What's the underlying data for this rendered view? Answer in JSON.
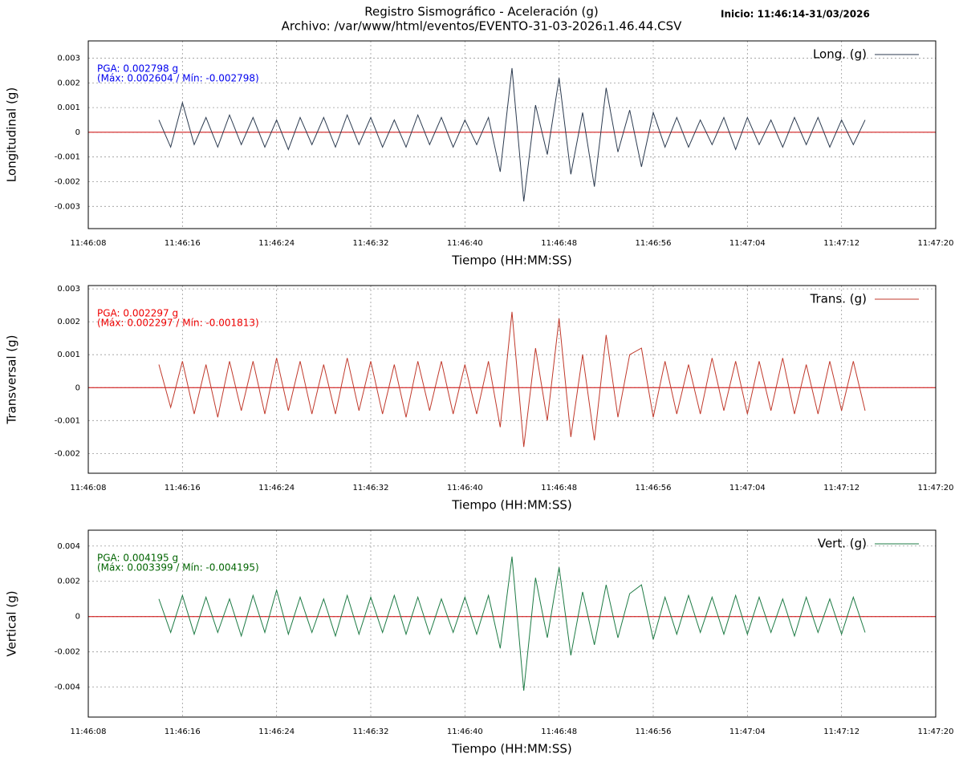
{
  "header": {
    "title": "Registro Sismográfico - Aceleración (g)",
    "subtitle": "Archivo: /var/www/html/eventos/EVENTO-31-03-2026₁1.46.44.CSV",
    "start": "Inicio: 11:46:14-31/03/2026"
  },
  "chart_data": [
    {
      "type": "line",
      "xlabel": "Tiempo (HH:MM:SS)",
      "ylabel": "Longitudinal (g)",
      "grid": true,
      "legend": "top-right",
      "zero_line_color": "#cc0000",
      "annotations": [
        "PGA: 0.002798 g",
        "(Máx: 0.002604 / Mín: -0.002798)"
      ],
      "annotation_color": "#0000ee",
      "xlim": [
        42368,
        42440
      ],
      "xticks": [
        {
          "value": 42368,
          "label": "11:46:08"
        },
        {
          "value": 42376,
          "label": "11:46:16"
        },
        {
          "value": 42384,
          "label": "11:46:24"
        },
        {
          "value": 42392,
          "label": "11:46:32"
        },
        {
          "value": 42400,
          "label": "11:46:40"
        },
        {
          "value": 42408,
          "label": "11:46:48"
        },
        {
          "value": 42416,
          "label": "11:46:56"
        },
        {
          "value": 42424,
          "label": "11:47:04"
        },
        {
          "value": 42432,
          "label": "11:47:12"
        },
        {
          "value": 42440,
          "label": "11:47:20"
        }
      ],
      "ylim": [
        -0.0039,
        0.0037
      ],
      "yticks": [
        -0.003,
        -0.002,
        -0.001,
        0,
        0.001,
        0.002,
        0.003
      ],
      "x": [
        42374,
        42375,
        42376,
        42377,
        42378,
        42379,
        42380,
        42381,
        42382,
        42383,
        42384,
        42385,
        42386,
        42387,
        42388,
        42389,
        42390,
        42391,
        42392,
        42393,
        42394,
        42395,
        42396,
        42397,
        42398,
        42399,
        42400,
        42401,
        42402,
        42403,
        42404,
        42405,
        42406,
        42407,
        42408,
        42409,
        42410,
        42411,
        42412,
        42413,
        42414,
        42415,
        42416,
        42417,
        42418,
        42419,
        42420,
        42421,
        42422,
        42423,
        42424,
        42425,
        42426,
        42427,
        42428,
        42429,
        42430,
        42431,
        42432,
        42433,
        42434
      ],
      "series": [
        {
          "name": "Long. (g)",
          "color": "#2b3a4f",
          "values": [
            0.0005,
            -0.0006,
            0.0012,
            -0.0005,
            0.0006,
            -0.0006,
            0.0007,
            -0.0005,
            0.0006,
            -0.0006,
            0.0005,
            -0.0007,
            0.0006,
            -0.0005,
            0.0006,
            -0.0006,
            0.0007,
            -0.0005,
            0.0006,
            -0.0006,
            0.0005,
            -0.0006,
            0.0007,
            -0.0005,
            0.0006,
            -0.0006,
            0.0005,
            -0.0005,
            0.0006,
            -0.0016,
            0.0026,
            -0.0028,
            0.0011,
            -0.0009,
            0.0022,
            -0.0017,
            0.0008,
            -0.0022,
            0.0018,
            -0.0008,
            0.0009,
            -0.0014,
            0.0008,
            -0.0006,
            0.0006,
            -0.0006,
            0.0005,
            -0.0005,
            0.0006,
            -0.0007,
            0.0006,
            -0.0005,
            0.0005,
            -0.0006,
            0.0006,
            -0.0005,
            0.0006,
            -0.0006,
            0.0005,
            -0.0005,
            0.0005
          ]
        }
      ]
    },
    {
      "type": "line",
      "xlabel": "Tiempo (HH:MM:SS)",
      "ylabel": "Transversal (g)",
      "grid": true,
      "legend": "top-right",
      "zero_line_color": "#cc0000",
      "annotations": [
        "PGA: 0.002297 g",
        "(Máx: 0.002297 / Mín: -0.001813)"
      ],
      "annotation_color": "#ee0000",
      "xlim": [
        42368,
        42440
      ],
      "xticks": [
        {
          "value": 42368,
          "label": "11:46:08"
        },
        {
          "value": 42376,
          "label": "11:46:16"
        },
        {
          "value": 42384,
          "label": "11:46:24"
        },
        {
          "value": 42392,
          "label": "11:46:32"
        },
        {
          "value": 42400,
          "label": "11:46:40"
        },
        {
          "value": 42408,
          "label": "11:46:48"
        },
        {
          "value": 42416,
          "label": "11:46:56"
        },
        {
          "value": 42424,
          "label": "11:47:04"
        },
        {
          "value": 42432,
          "label": "11:47:12"
        },
        {
          "value": 42440,
          "label": "11:47:20"
        }
      ],
      "ylim": [
        -0.0026,
        0.0031
      ],
      "yticks": [
        -0.002,
        -0.001,
        0,
        0.001,
        0.002,
        0.003
      ],
      "x": [
        42374,
        42375,
        42376,
        42377,
        42378,
        42379,
        42380,
        42381,
        42382,
        42383,
        42384,
        42385,
        42386,
        42387,
        42388,
        42389,
        42390,
        42391,
        42392,
        42393,
        42394,
        42395,
        42396,
        42397,
        42398,
        42399,
        42400,
        42401,
        42402,
        42403,
        42404,
        42405,
        42406,
        42407,
        42408,
        42409,
        42410,
        42411,
        42412,
        42413,
        42414,
        42415,
        42416,
        42417,
        42418,
        42419,
        42420,
        42421,
        42422,
        42423,
        42424,
        42425,
        42426,
        42427,
        42428,
        42429,
        42430,
        42431,
        42432,
        42433,
        42434
      ],
      "series": [
        {
          "name": "Trans. (g)",
          "color": "#c0392b",
          "values": [
            0.0007,
            -0.0006,
            0.0008,
            -0.0008,
            0.0007,
            -0.0009,
            0.0008,
            -0.0007,
            0.0008,
            -0.0008,
            0.0009,
            -0.0007,
            0.0008,
            -0.0008,
            0.0007,
            -0.0008,
            0.0009,
            -0.0007,
            0.0008,
            -0.0008,
            0.0007,
            -0.0009,
            0.0008,
            -0.0007,
            0.0008,
            -0.0008,
            0.0007,
            -0.0008,
            0.0008,
            -0.0012,
            0.0023,
            -0.0018,
            0.0012,
            -0.001,
            0.0021,
            -0.0015,
            0.001,
            -0.0016,
            0.0016,
            -0.0009,
            0.001,
            0.0012,
            -0.0009,
            0.0008,
            -0.0008,
            0.0007,
            -0.0008,
            0.0009,
            -0.0007,
            0.0008,
            -0.0008,
            0.0008,
            -0.0007,
            0.0009,
            -0.0008,
            0.0007,
            -0.0008,
            0.0008,
            -0.0007,
            0.0008,
            -0.0007
          ]
        }
      ]
    },
    {
      "type": "line",
      "xlabel": "Tiempo (HH:MM:SS)",
      "ylabel": "Vertical (g)",
      "grid": true,
      "legend": "top-right",
      "zero_line_color": "#cc0000",
      "annotations": [
        "PGA: 0.004195 g",
        "(Máx: 0.003399 / Mín: -0.004195)"
      ],
      "annotation_color": "#006400",
      "xlim": [
        42368,
        42440
      ],
      "xticks": [
        {
          "value": 42368,
          "label": "11:46:08"
        },
        {
          "value": 42376,
          "label": "11:46:16"
        },
        {
          "value": 42384,
          "label": "11:46:24"
        },
        {
          "value": 42392,
          "label": "11:46:32"
        },
        {
          "value": 42400,
          "label": "11:46:40"
        },
        {
          "value": 42408,
          "label": "11:46:48"
        },
        {
          "value": 42416,
          "label": "11:46:56"
        },
        {
          "value": 42424,
          "label": "11:47:04"
        },
        {
          "value": 42432,
          "label": "11:47:12"
        },
        {
          "value": 42440,
          "label": "11:47:20"
        }
      ],
      "ylim": [
        -0.0057,
        0.0049
      ],
      "yticks": [
        -0.004,
        -0.002,
        0,
        0.002,
        0.004
      ],
      "x": [
        42374,
        42375,
        42376,
        42377,
        42378,
        42379,
        42380,
        42381,
        42382,
        42383,
        42384,
        42385,
        42386,
        42387,
        42388,
        42389,
        42390,
        42391,
        42392,
        42393,
        42394,
        42395,
        42396,
        42397,
        42398,
        42399,
        42400,
        42401,
        42402,
        42403,
        42404,
        42405,
        42406,
        42407,
        42408,
        42409,
        42410,
        42411,
        42412,
        42413,
        42414,
        42415,
        42416,
        42417,
        42418,
        42419,
        42420,
        42421,
        42422,
        42423,
        42424,
        42425,
        42426,
        42427,
        42428,
        42429,
        42430,
        42431,
        42432,
        42433,
        42434
      ],
      "series": [
        {
          "name": "Vert. (g)",
          "color": "#1e7b45",
          "values": [
            0.001,
            -0.0009,
            0.0012,
            -0.001,
            0.0011,
            -0.0009,
            0.001,
            -0.0011,
            0.0012,
            -0.0009,
            0.0015,
            -0.001,
            0.0011,
            -0.0009,
            0.001,
            -0.0011,
            0.0012,
            -0.001,
            0.0011,
            -0.0009,
            0.0012,
            -0.001,
            0.0011,
            -0.001,
            0.001,
            -0.0009,
            0.0011,
            -0.001,
            0.0012,
            -0.0018,
            0.0034,
            -0.0042,
            0.0022,
            -0.0012,
            0.0028,
            -0.0022,
            0.0014,
            -0.0016,
            0.0018,
            -0.0012,
            0.0013,
            0.0018,
            -0.0013,
            0.0011,
            -0.001,
            0.0012,
            -0.0009,
            0.0011,
            -0.001,
            0.0012,
            -0.001,
            0.0011,
            -0.0009,
            0.001,
            -0.0011,
            0.0011,
            -0.0009,
            0.001,
            -0.001,
            0.0011,
            -0.0009
          ]
        }
      ]
    }
  ]
}
